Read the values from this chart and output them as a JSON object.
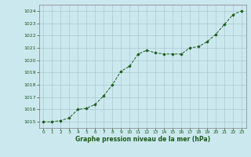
{
  "x": [
    0,
    1,
    2,
    3,
    4,
    5,
    6,
    7,
    8,
    9,
    10,
    11,
    12,
    13,
    14,
    15,
    16,
    17,
    18,
    19,
    20,
    21,
    22,
    23
  ],
  "y": [
    1015.0,
    1015.0,
    1015.1,
    1015.3,
    1016.0,
    1016.1,
    1016.4,
    1017.1,
    1018.0,
    1019.1,
    1019.5,
    1020.5,
    1020.8,
    1020.6,
    1020.5,
    1020.5,
    1020.5,
    1021.0,
    1021.1,
    1021.5,
    1022.1,
    1022.9,
    1023.7,
    1024.0
  ],
  "ylim": [
    1014.5,
    1024.5
  ],
  "yticks": [
    1015,
    1016,
    1017,
    1018,
    1019,
    1020,
    1021,
    1022,
    1023,
    1024
  ],
  "xticks": [
    0,
    1,
    2,
    3,
    4,
    5,
    6,
    7,
    8,
    9,
    10,
    11,
    12,
    13,
    14,
    15,
    16,
    17,
    18,
    19,
    20,
    21,
    22,
    23
  ],
  "xlabel": "Graphe pression niveau de la mer (hPa)",
  "line_color": "#1a5c1a",
  "marker": "D",
  "marker_size": 1.8,
  "bg_color": "#cce8ef",
  "grid_color": "#aac8d0",
  "xlabel_color": "#1a5c1a",
  "tick_color": "#1a5c1a",
  "axis_color": "#808080",
  "xlim": [
    -0.5,
    23.5
  ]
}
